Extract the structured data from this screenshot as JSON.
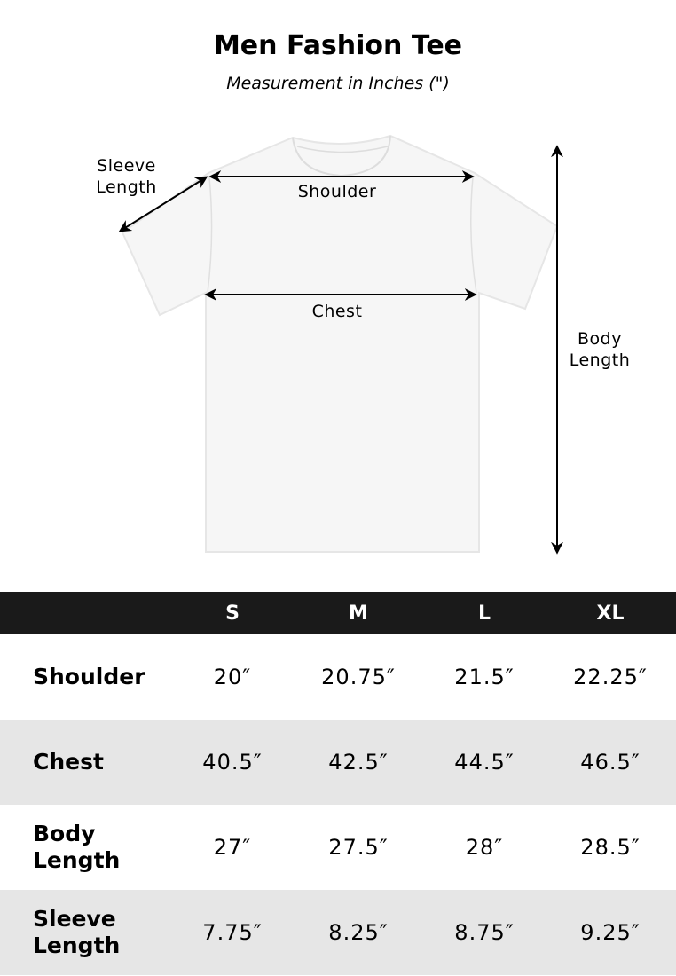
{
  "header": {
    "title": "Men Fashion Tee",
    "subtitle": "Measurement in Inches (\")"
  },
  "diagram": {
    "labels": {
      "sleeve": "Sleeve Length",
      "shoulder": "Shoulder",
      "chest": "Chest",
      "body": "Body Length"
    }
  },
  "table": {
    "sizes": [
      "S",
      "M",
      "L",
      "XL"
    ],
    "rows": [
      {
        "label": "Shoulder",
        "values": [
          "20″",
          "20.75″",
          "21.5″",
          "22.25″"
        ]
      },
      {
        "label": "Chest",
        "values": [
          "40.5″",
          "42.5″",
          "44.5″",
          "46.5″"
        ]
      },
      {
        "label": "Body Length",
        "values": [
          "27″",
          "27.5″",
          "28″",
          "28.5″"
        ]
      },
      {
        "label": "Sleeve Length",
        "values": [
          "7.75″",
          "8.25″",
          "8.75″",
          "9.25″"
        ]
      }
    ]
  },
  "colors": {
    "header_bg": "#1a1a1a",
    "alt_row": "#e6e6e6",
    "shirt": "#f6f6f6"
  }
}
